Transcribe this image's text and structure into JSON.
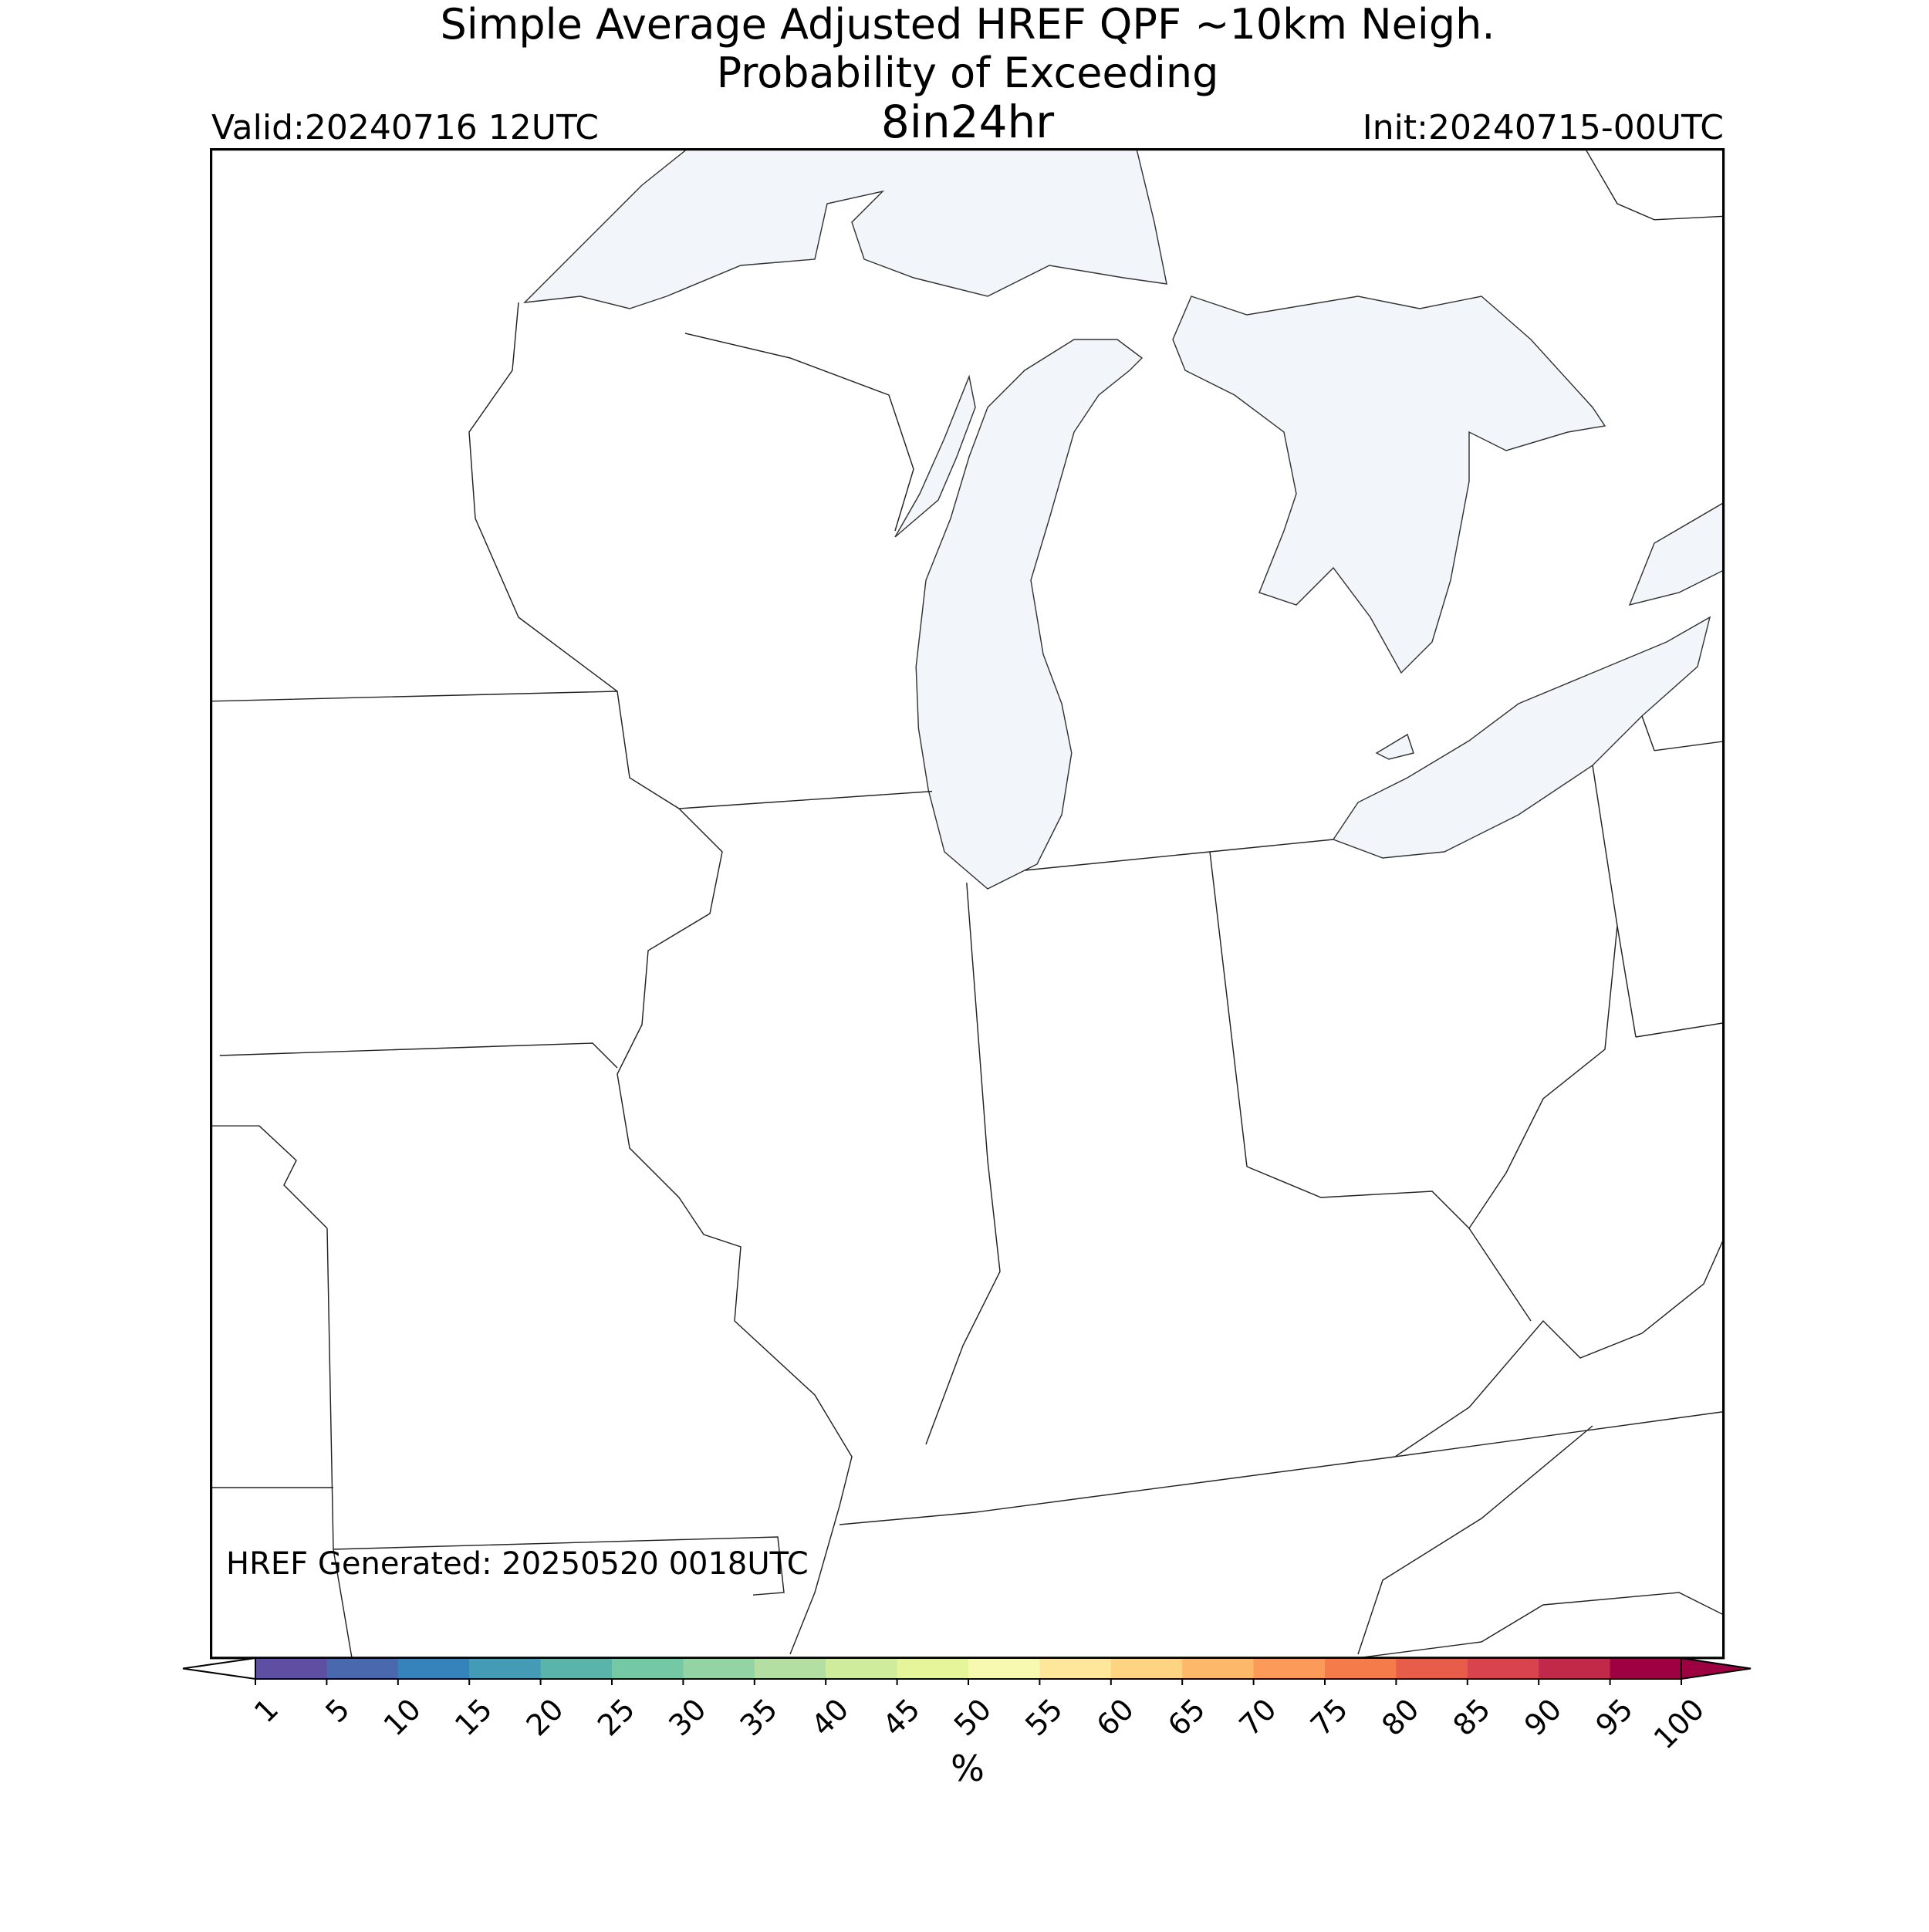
{
  "header": {
    "title_lines": [
      "Simple Average Adjusted HREF QPF ~10km Neigh.",
      "Probability of Exceeding",
      "8in24hr"
    ],
    "valid": "Valid:20240716 12UTC",
    "init": "Init:20240715-00UTC"
  },
  "generated": "HREF Generated: 20250520 0018UTC",
  "colorbar": {
    "label": "%",
    "ticks": [
      1,
      5,
      10,
      15,
      20,
      25,
      30,
      35,
      40,
      45,
      50,
      55,
      60,
      65,
      70,
      75,
      80,
      85,
      90,
      95,
      100
    ],
    "colors": [
      "#5e4fa2",
      "#4a68ad",
      "#3682ba",
      "#439bb5",
      "#5bb4a9",
      "#75c8a4",
      "#94d4a4",
      "#b3e0a2",
      "#cfec9d",
      "#e7f59a",
      "#f8f9b0",
      "#fee79b",
      "#fed382",
      "#fdb869",
      "#fb9a59",
      "#f67b4a",
      "#e75d4a",
      "#d8434e",
      "#c0294a",
      "#9e0142"
    ],
    "under_color": "#ffffff",
    "over_color": "#9e0142"
  }
}
